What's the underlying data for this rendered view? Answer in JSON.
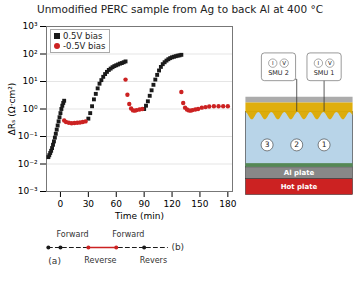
{
  "chart_data": {
    "type": "scatter",
    "title": "Unmodified PERC sample from Ag to back Al at 400 °C",
    "xlabel": "Time (min)",
    "ylabel": "ΔRₛ (Ω·cm²)",
    "xlim": [
      -15,
      185
    ],
    "xticks": [
      0,
      30,
      60,
      90,
      120,
      150,
      180
    ],
    "ylim": [
      0.001,
      1000
    ],
    "yticks": [
      {
        "value": 0.001,
        "label": "10⁻³"
      },
      {
        "value": 0.01,
        "label": "10⁻²"
      },
      {
        "value": 0.1,
        "label": "10⁻¹"
      },
      {
        "value": 1,
        "label": "10⁰"
      },
      {
        "value": 10,
        "label": "10¹"
      },
      {
        "value": 100,
        "label": "10²"
      },
      {
        "value": 1000,
        "label": "10³"
      }
    ],
    "log": "y",
    "grid": "y",
    "legend": "upper left",
    "series": [
      {
        "name": "0.5V bias",
        "color": "#1a1a1a",
        "marker": "square",
        "x": [
          -13,
          -12,
          -11,
          -10,
          -9,
          -8,
          -7,
          -6,
          -5,
          -4,
          -3,
          -2,
          -1,
          0,
          1,
          2,
          3,
          4,
          30,
          32,
          34,
          36,
          38,
          40,
          42,
          44,
          46,
          48,
          50,
          52,
          54,
          56,
          58,
          60,
          62,
          64,
          66,
          68,
          70,
          90,
          92,
          94,
          96,
          98,
          100,
          102,
          104,
          106,
          108,
          110,
          112,
          114,
          116,
          118,
          120,
          122,
          124,
          126,
          128,
          130
        ],
        "values": [
          0.01778279,
          0.02089296,
          0.02511886,
          0.03019952,
          0.03801894,
          0.05011872,
          0.06606934,
          0.09120108,
          0.1258925,
          0.1778279,
          0.2511886,
          0.3548134,
          0.5011872,
          0.7079458,
          1,
          1.318257,
          1.659587,
          1.995262,
          0.4466836,
          0.7079458,
          1.258925,
          2.238721,
          3.548134,
          5.623413,
          8.317638,
          11.22018,
          14.79108,
          18.62087,
          22.38721,
          26.30268,
          29.51209,
          33.11311,
          36.30781,
          38.90451,
          41.68694,
          44.66836,
          46.77351,
          50.11872,
          53.70318,
          1,
          1.318257,
          1.905461,
          3.019952,
          4.786301,
          7.585776,
          11.74898,
          17.37801,
          25.11886,
          33.88442,
          42.65795,
          50.11872,
          57.54399,
          64.56542,
          70.79458,
          75.85776,
          79.43282,
          83.17638,
          87.09636,
          89.12509,
          93.32543
        ]
      },
      {
        "name": "-0.5V bias",
        "color": "#cc2222",
        "marker": "circle",
        "x": [
          4,
          6,
          9,
          12,
          15,
          18,
          21,
          24,
          27,
          70,
          72,
          74,
          76,
          78,
          80,
          82,
          85,
          88,
          130,
          132,
          134,
          136,
          138,
          140,
          142,
          145,
          148,
          152,
          156,
          160,
          165,
          170,
          175,
          180
        ],
        "values": [
          0.3801894,
          0.3388442,
          0.3162278,
          0.3019952,
          0.3090295,
          0.3162278,
          0.3235937,
          0.3388442,
          0.3548134,
          11.74898,
          3.311311,
          1.513561,
          1.047129,
          0.8912509,
          0.8709636,
          0.9120108,
          0.9549926,
          1,
          4.168694,
          1.659587,
          1.122018,
          0.9549926,
          0.8912509,
          0.8709636,
          0.9120108,
          0.9549926,
          1,
          1.122018,
          1.174898,
          1.230269,
          1.258925,
          1.258925,
          1.258925,
          1.258925
        ]
      }
    ],
    "annotations": [
      "Forward",
      "Reverse",
      "Forward",
      "Revers",
      "(a)",
      "(b)",
      "Hot plate",
      "Al plate",
      "3",
      "2",
      "1",
      "SMU 2",
      "SMU 1",
      "I",
      "V",
      "I",
      "V"
    ]
  }
}
